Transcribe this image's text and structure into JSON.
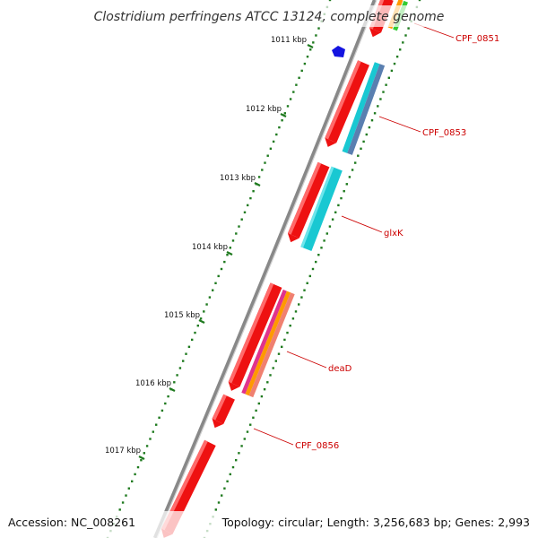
{
  "title": "Clostridium perfringens ATCC 13124, complete genome",
  "footer": {
    "accession": "Accession: NC_008261",
    "topology": "Topology: circular; Length: 3,256,683 bp; Genes: 2,993"
  },
  "kbp_labels": [
    "1011 kbp",
    "1012 kbp",
    "1013 kbp",
    "1014 kbp",
    "1015 kbp",
    "1016 kbp",
    "1017 kbp"
  ],
  "gene_labels": [
    "CPF_0851",
    "CPF_0853",
    "glxK",
    "deaD",
    "CPF_0856"
  ],
  "colors": {
    "backbone": "#8a8a8a",
    "tick": "#1f7a1f",
    "gene_label": "#cc0000",
    "leader_line": "#cc0000",
    "cds": "#ee1111",
    "cyan": "#19c8d2",
    "steel": "#5a7fb0",
    "orange": "#ff9900",
    "green": "#33cc33",
    "magenta": "#e0338c",
    "salmon": "#f08070",
    "blue_marker": "#1414e0"
  }
}
